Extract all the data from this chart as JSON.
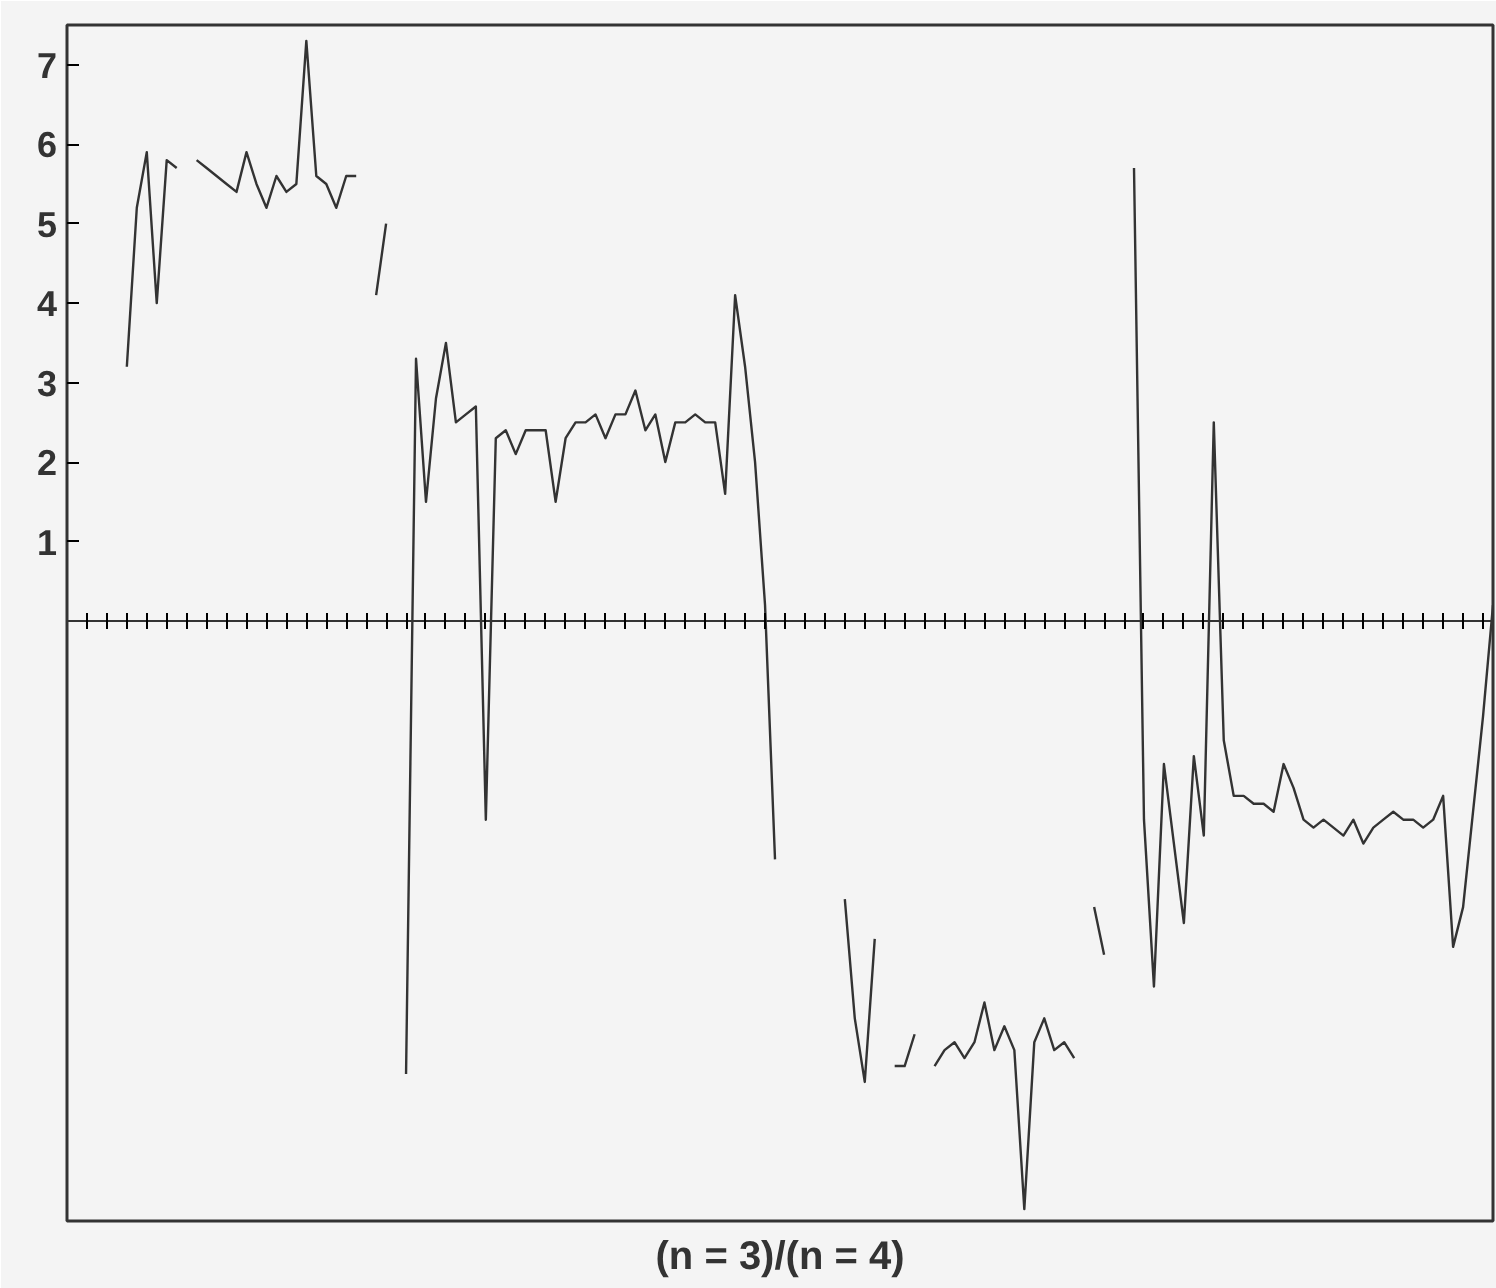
{
  "chart_data": {
    "type": "line",
    "xlabel": "(n = 3)/(n = 4)",
    "categories": [
      null,
      null,
      null,
      null,
      null,
      null,
      null,
      null,
      null,
      null,
      null,
      null,
      null,
      null,
      null,
      null,
      null,
      null,
      null,
      null,
      null,
      null,
      null,
      null,
      null,
      null,
      null,
      null,
      null,
      null,
      null,
      null,
      null,
      null,
      null,
      null,
      null,
      null,
      null,
      null,
      null,
      null,
      null,
      null,
      null,
      null,
      null,
      null,
      null,
      null,
      null,
      null,
      null,
      null,
      null,
      null,
      null,
      null,
      null,
      null,
      null,
      null,
      null,
      null,
      null,
      null,
      null,
      null,
      null,
      null,
      null,
      null,
      null,
      null,
      null,
      null,
      null,
      null,
      null,
      null,
      null,
      null,
      null,
      null,
      null,
      null,
      null,
      null,
      null,
      null,
      null,
      null,
      null,
      null,
      null,
      null,
      null,
      null,
      null,
      null,
      null,
      null,
      null,
      null,
      null,
      null,
      null,
      null,
      null,
      null,
      null,
      null,
      null,
      null,
      null,
      null,
      null,
      null,
      null,
      null,
      null,
      null,
      null,
      null,
      null,
      null,
      null,
      null,
      null,
      null,
      null,
      null,
      null,
      null,
      null,
      null,
      null,
      null,
      null,
      null,
      null,
      null,
      null,
      null
    ],
    "series": [
      {
        "color": "#333333",
        "values": [
          0,
          null,
          null,
          null,
          null,
          null,
          3.2,
          5.2,
          5.9,
          4.0,
          5.8,
          5.7,
          null,
          5.8,
          5.7,
          5.6,
          5.5,
          5.4,
          5.9,
          5.5,
          5.2,
          5.6,
          5.4,
          5.5,
          7.3,
          5.6,
          5.5,
          5.2,
          5.6,
          5.6,
          null,
          4.1,
          5.0,
          null,
          -5.7,
          3.3,
          1.5,
          2.8,
          3.5,
          2.5,
          2.6,
          2.7,
          -2.5,
          2.3,
          2.4,
          2.1,
          2.4,
          2.4,
          2.4,
          1.5,
          2.3,
          2.5,
          2.5,
          2.6,
          2.3,
          2.6,
          2.6,
          2.9,
          2.4,
          2.6,
          2.0,
          2.5,
          2.5,
          2.6,
          2.5,
          2.5,
          1.6,
          4.1,
          3.2,
          2.0,
          0.2,
          -3,
          null,
          null,
          null,
          null,
          null,
          null,
          -3.5,
          -5.0,
          -5.8,
          -4.0,
          null,
          -5.6,
          -5.6,
          -5.2,
          null,
          -5.6,
          -5.4,
          -5.3,
          -5.5,
          -5.3,
          -4.8,
          -5.4,
          -5.1,
          -5.4,
          -7.4,
          -5.3,
          -5.0,
          -5.4,
          -5.3,
          -5.5,
          null,
          -3.6,
          -4.2,
          null,
          null,
          5.7,
          -2.5,
          -4.6,
          -1.8,
          -2.8,
          -3.8,
          -1.7,
          -2.7,
          2.5,
          -1.5,
          -2.2,
          -2.2,
          -2.3,
          -2.3,
          -2.4,
          -1.8,
          -2.1,
          -2.5,
          -2.6,
          -2.5,
          -2.6,
          -2.7,
          -2.5,
          -2.8,
          -2.6,
          -2.5,
          -2.4,
          -2.5,
          -2.5,
          -2.6,
          -2.5,
          -2.2,
          -4.1,
          -3.6,
          -2.4,
          -1.2,
          0.2
        ]
      }
    ],
    "ylim": [
      -7.55,
      7.5
    ],
    "yticks": [
      1,
      2,
      3,
      4,
      5,
      6,
      7
    ],
    "tick_labels": "y"
  }
}
